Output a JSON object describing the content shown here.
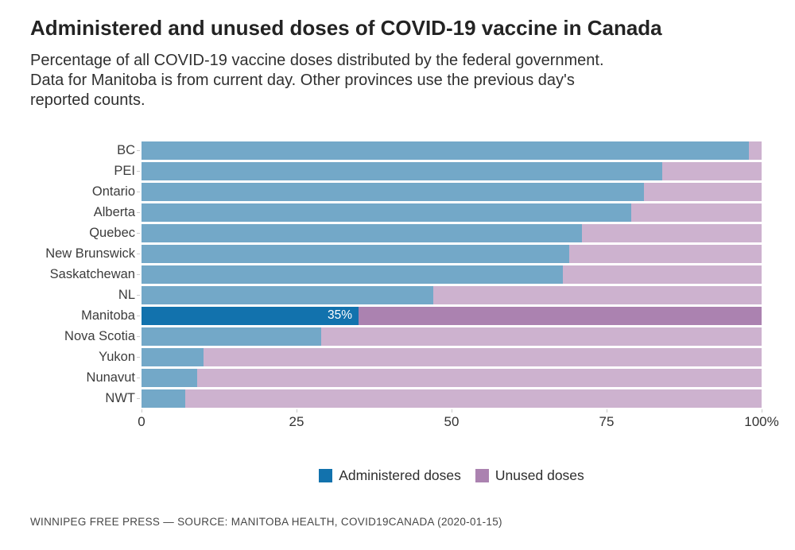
{
  "header": {
    "title": "Administered and unused doses of COVID-19 vaccine in Canada",
    "subtitle_lines": [
      "Percentage of all COVID-19 vaccine doses distributed by the federal government.",
      "Data for Manitoba is from current day. Other provinces use the previous day's",
      "reported counts."
    ]
  },
  "chart_data": {
    "type": "bar",
    "orientation": "horizontal",
    "stacked": true,
    "categories": [
      "BC",
      "PEI",
      "Ontario",
      "Alberta",
      "Quebec",
      "New Brunswick",
      "Saskatchewan",
      "NL",
      "Manitoba",
      "Nova Scotia",
      "Yukon",
      "Nunavut",
      "NWT"
    ],
    "series": [
      {
        "name": "Administered doses",
        "values": [
          98,
          84,
          81,
          79,
          71,
          69,
          68,
          47,
          35,
          29,
          10,
          9,
          7
        ]
      },
      {
        "name": "Unused doses",
        "values": [
          2,
          16,
          19,
          21,
          29,
          31,
          32,
          53,
          65,
          71,
          90,
          91,
          93
        ]
      }
    ],
    "highlight_category": "Manitoba",
    "bar_label": {
      "category": "Manitoba",
      "text": "35%"
    },
    "xlim": [
      0,
      100
    ],
    "x_ticks": [
      "0",
      "25",
      "50",
      "75",
      "100%"
    ],
    "x_tick_values": [
      0,
      25,
      50,
      75,
      100
    ],
    "grid": false,
    "legend_position": "bottom-center",
    "colors": {
      "administered": "#73a8c8",
      "unused": "#cdb2cf",
      "administered_highlight": "#1272ad",
      "unused_highlight": "#ab82b0"
    },
    "legend": [
      {
        "label": "Administered doses",
        "color": "#1272ad"
      },
      {
        "label": "Unused doses",
        "color": "#ab82b0"
      }
    ]
  },
  "footer": {
    "credit": "WINNIPEG FREE PRESS — SOURCE: MANITOBA HEALTH, COVID19CANADA (2020-01-15)"
  }
}
